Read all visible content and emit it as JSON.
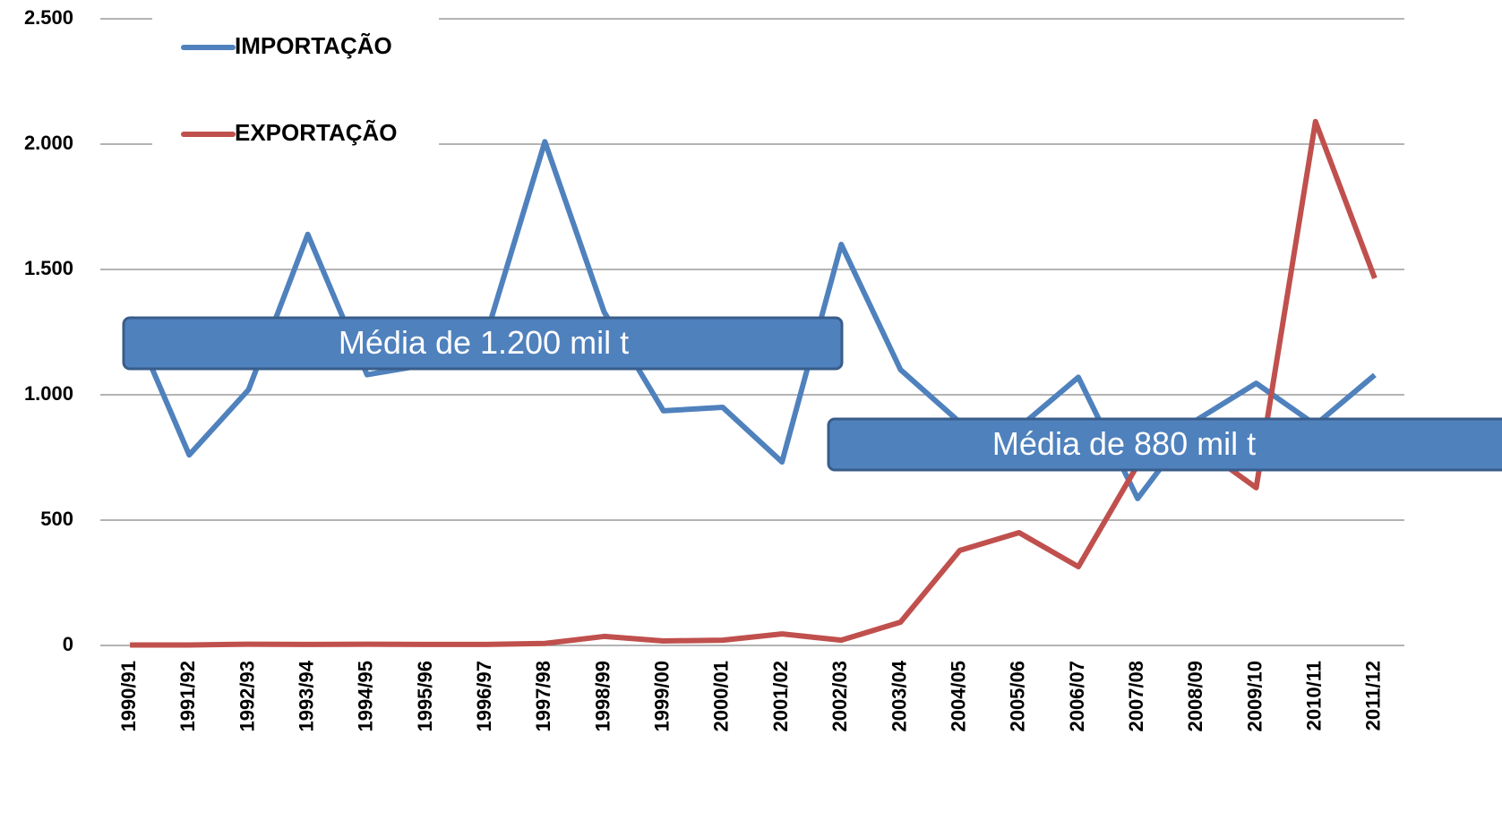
{
  "chart_data": {
    "type": "line",
    "categories": [
      "1990/91",
      "1991/92",
      "1992/93",
      "1993/94",
      "1994/95",
      "1995/96",
      "1996/97",
      "1997/98",
      "1998/99",
      "1999/00",
      "2000/01",
      "2001/02",
      "2002/03",
      "2003/04",
      "2004/05",
      "2005/06",
      "2006/07",
      "2007/08",
      "2008/09",
      "2009/10",
      "2010/11",
      "2011/12"
    ],
    "series": [
      {
        "name": "IMPORTAÇÃO",
        "color": "#4f81bd",
        "values": [
          1310,
          760,
          1020,
          1640,
          1080,
          1120,
          1230,
          2010,
          1330,
          936,
          950,
          732,
          1600,
          1100,
          890,
          870,
          1070,
          586,
          900,
          1046,
          880,
          1079
        ]
      },
      {
        "name": "EXPORTAÇÃO",
        "color": "#c0504d",
        "values": [
          2,
          2,
          5,
          4,
          5,
          4,
          4,
          8,
          36,
          18,
          21,
          46,
          21,
          93,
          379,
          450,
          314,
          720,
          800,
          629,
          2090,
          1465
        ]
      }
    ],
    "ylim": [
      0,
      2500
    ],
    "yticks": [
      0,
      500,
      {
        "value": 1000,
        "label": "1.000"
      },
      {
        "value": 1500,
        "label": "1.500"
      },
      {
        "value": 2000,
        "label": "2.000"
      },
      {
        "value": 2500,
        "label": "2.500"
      }
    ],
    "grid": true,
    "legend": "upper left",
    "annotations": [
      "Média de 1.200 mil t",
      "Média de 880 mil t"
    ]
  }
}
